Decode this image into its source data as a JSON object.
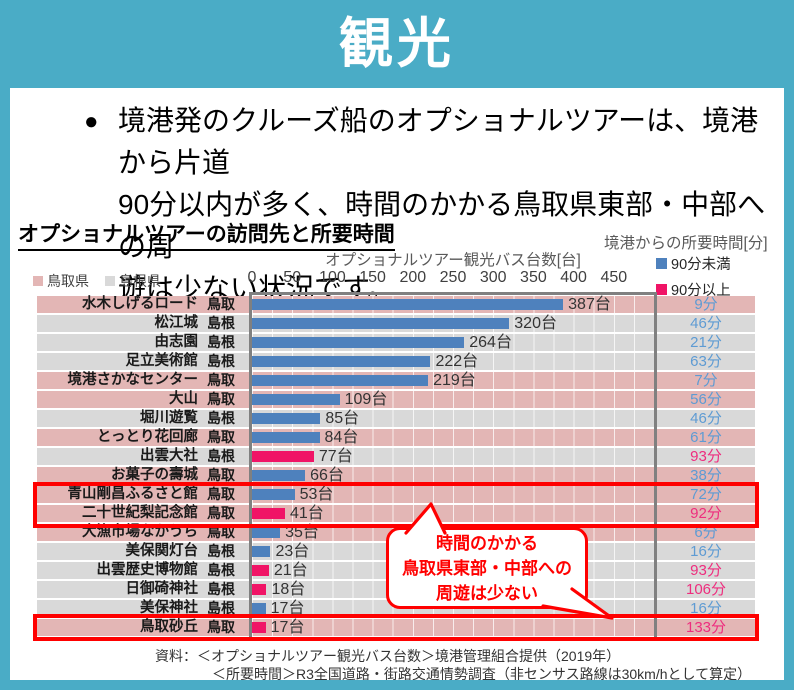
{
  "header": {
    "title": "観光"
  },
  "summary": {
    "bullet": "●",
    "lines": [
      "境港発のクルーズ船のオプショナルツアーは、境港から片道",
      "90分以内が多く、時間のかかる鳥取県東部・中部への周",
      "遊は少ない状況です。"
    ]
  },
  "chart": {
    "title": "オプショナルツアーの訪問先と所要時間",
    "axis_title": "オプショナルツアー観光バス台数[台]",
    "time_axis_title": "境港からの所要時間[分]",
    "prefecture_legend": [
      {
        "label": "鳥取県",
        "color": "#E3B6B5"
      },
      {
        "label": "島根県",
        "color": "#D9D9D9"
      }
    ],
    "time_legend": [
      {
        "label": "90分未満",
        "color": "#4E81BD"
      },
      {
        "label": "90分以上",
        "color": "#F01466"
      }
    ]
  },
  "chart_data": {
    "type": "bar",
    "orientation": "horizontal",
    "title": "オプショナルツアーの訪問先と所要時間",
    "xlabel": "オプショナルツアー観光バス台数[台]",
    "xlim": [
      0,
      500
    ],
    "xticks": [
      0,
      50,
      100,
      150,
      200,
      250,
      300,
      350,
      400,
      450
    ],
    "bus_unit": "台",
    "minute_unit": "分",
    "threshold_minutes": 90,
    "tottori_name": "鳥取",
    "rows": [
      {
        "label": "水木しげるロード",
        "pref": "鳥取",
        "buses": 387,
        "minutes": 9
      },
      {
        "label": "松江城",
        "pref": "島根",
        "buses": 320,
        "minutes": 46
      },
      {
        "label": "由志園",
        "pref": "島根",
        "buses": 264,
        "minutes": 21
      },
      {
        "label": "足立美術館",
        "pref": "島根",
        "buses": 222,
        "minutes": 63
      },
      {
        "label": "境港さかなセンター",
        "pref": "鳥取",
        "buses": 219,
        "minutes": 7
      },
      {
        "label": "大山",
        "pref": "鳥取",
        "buses": 109,
        "minutes": 56
      },
      {
        "label": "堀川遊覧",
        "pref": "島根",
        "buses": 85,
        "minutes": 46
      },
      {
        "label": "とっとり花回廊",
        "pref": "鳥取",
        "buses": 84,
        "minutes": 61
      },
      {
        "label": "出雲大社",
        "pref": "島根",
        "buses": 77,
        "minutes": 93
      },
      {
        "label": "お菓子の壽城",
        "pref": "鳥取",
        "buses": 66,
        "minutes": 38
      },
      {
        "label": "青山剛昌ふるさと館",
        "pref": "鳥取",
        "buses": 53,
        "minutes": 72
      },
      {
        "label": "二十世紀梨記念館",
        "pref": "鳥取",
        "buses": 41,
        "minutes": 92
      },
      {
        "label": "大漁市場なかうら",
        "pref": "鳥取",
        "buses": 35,
        "minutes": 6
      },
      {
        "label": "美保関灯台",
        "pref": "島根",
        "buses": 23,
        "minutes": 16
      },
      {
        "label": "出雲歴史博物館",
        "pref": "島根",
        "buses": 21,
        "minutes": 93
      },
      {
        "label": "日御碕神社",
        "pref": "島根",
        "buses": 18,
        "minutes": 106
      },
      {
        "label": "美保神社",
        "pref": "島根",
        "buses": 17,
        "minutes": 16
      },
      {
        "label": "鳥取砂丘",
        "pref": "鳥取",
        "buses": 17,
        "minutes": 133
      }
    ],
    "highlighted_rows": [
      "青山剛昌ふるさと館",
      "二十世紀梨記念館",
      "鳥取砂丘"
    ],
    "legend_position": "top-right",
    "grid": true
  },
  "callout": {
    "lines": [
      "時間のかかる",
      "鳥取県東部・中部への",
      "周遊は少ない"
    ]
  },
  "source": {
    "prefix": "資料：",
    "lines": [
      "＜オプショナルツアー観光バス台数＞境港管理組合提供（2019年）",
      "＜所要時間＞R3全国道路・街路交通情勢調査（非センサス路線は30km/hとして算定）"
    ]
  },
  "colors": {
    "frame_teal": "#4AACC6",
    "tottori_row": "#E3B6B5",
    "shimane_row": "#D9D9D9",
    "bar_under90": "#4E81BD",
    "bar_over90": "#F01466",
    "time_under90": "#5E9BD3",
    "time_over90": "#EE2D7E",
    "highlight_red": "#FF0000",
    "plot_border": "#808080"
  }
}
